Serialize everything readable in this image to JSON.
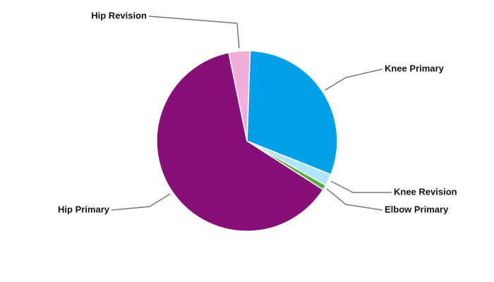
{
  "chart_data": {
    "type": "pie",
    "categories": [
      "Knee Primary",
      "Knee Revision",
      "Elbow Primary",
      "Hip Primary",
      "Hip Revision"
    ],
    "values": [
      30.5,
      2.1,
      0.9,
      62.7,
      3.8
    ],
    "colors": [
      "#009fe8",
      "#aee6fb",
      "#5aab3c",
      "#860f78",
      "#f2aedb"
    ]
  }
}
